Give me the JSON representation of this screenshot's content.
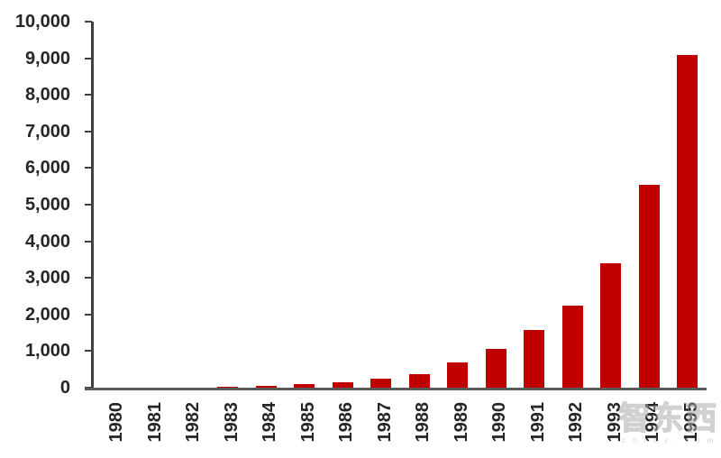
{
  "chart_data": {
    "type": "bar",
    "title": "",
    "xlabel": "",
    "ylabel": "",
    "categories": [
      "1980",
      "1981",
      "1982",
      "1983",
      "1984",
      "1985",
      "1986",
      "1987",
      "1988",
      "1989",
      "1990",
      "1991",
      "1992",
      "1993",
      "1994",
      "1995"
    ],
    "values": [
      0,
      0,
      0,
      20,
      50,
      90,
      160,
      240,
      380,
      690,
      1060,
      1580,
      2250,
      3390,
      5550,
      9090
    ],
    "ylim": [
      0,
      10000
    ],
    "ytick_interval": 1000,
    "ytick_labels_top_down": [
      "10,000",
      "9,000",
      "8,000",
      "7,000",
      "6,000",
      "5,000",
      "4,000",
      "3,000",
      "2,000",
      "1,000",
      "0"
    ],
    "grid": false,
    "legend": "none",
    "bar_color": "#c00000",
    "axis_color": "#3f3f3f",
    "baseline_color": "#595959",
    "label_color": "#262626"
  },
  "watermark": {
    "text": "智东西",
    "subtext": "z h i d x . c o m"
  }
}
